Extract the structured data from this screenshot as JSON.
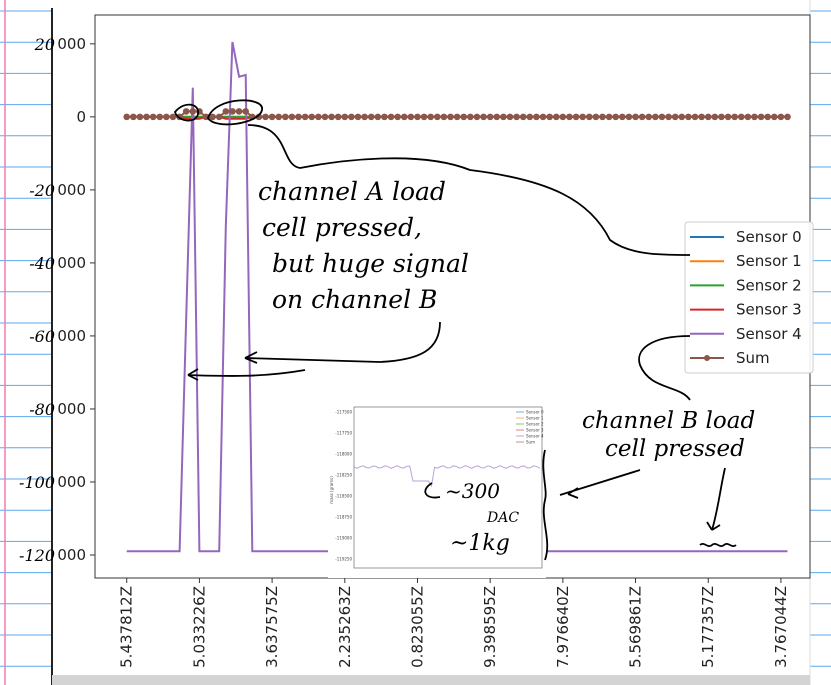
{
  "chart_data": {
    "type": "line",
    "title": "",
    "xlabel": "",
    "ylabel": "",
    "x": [
      0,
      1,
      2,
      3,
      4,
      5,
      6,
      7,
      8,
      9,
      10,
      11,
      12,
      13,
      14,
      15,
      16,
      17,
      18,
      19,
      20,
      21,
      22,
      23,
      24,
      25,
      26,
      27,
      28,
      29,
      30,
      31,
      32,
      33,
      34,
      35,
      36,
      37,
      38,
      39,
      40,
      41,
      42,
      43,
      44,
      45,
      46,
      47,
      48,
      49,
      50,
      51,
      52,
      53,
      54,
      55,
      56,
      57,
      58,
      59,
      60,
      61,
      62,
      63,
      64,
      65,
      66,
      67,
      68,
      69,
      70,
      71,
      72,
      73,
      74,
      75,
      76,
      77,
      78,
      79,
      80,
      81,
      82,
      83,
      84,
      85,
      86,
      87,
      88,
      89,
      90,
      91,
      92,
      93,
      94,
      95,
      96,
      97,
      98,
      99,
      100
    ],
    "xticks": [
      0,
      11,
      22,
      33,
      44,
      55,
      66,
      77,
      88,
      99
    ],
    "xtick_labels": [
      "5.437812Z",
      "5.033226Z",
      "3.637575Z",
      "2.235263Z",
      "0.823055Z",
      "9.398595Z",
      "7.976640Z",
      "5.569861Z",
      "5.177357Z",
      "3.767044Z"
    ],
    "xlim": [
      -4.8,
      103.4
    ],
    "ylim": [
      -126300,
      27900
    ],
    "yticks": [
      20000,
      0,
      -20000,
      -40000,
      -60000,
      -80000,
      -100000,
      -120000
    ],
    "ytick_labels": [
      "000",
      "0",
      "000",
      "000",
      "000",
      "000",
      "000",
      "000"
    ],
    "grid": false,
    "legend_placement": "center-right",
    "series": [
      {
        "name": "Sensor 0",
        "color": "#1f77b4",
        "baseline": 0,
        "overrides": {}
      },
      {
        "name": "Sensor 1",
        "color": "#ff7f0e",
        "baseline": 0,
        "overrides": {}
      },
      {
        "name": "Sensor 2",
        "color": "#2ca02c",
        "baseline": 0,
        "overrides": {}
      },
      {
        "name": "Sensor 3",
        "color": "#d62728",
        "baseline": 0,
        "overrides": {
          "9": -500,
          "10": -500,
          "11": -500,
          "15": -500,
          "16": -500,
          "17": -500,
          "18": -500
        }
      },
      {
        "name": "Sensor 4",
        "color": "#9467bd",
        "baseline": -119000,
        "overrides": {
          "9": -55000,
          "10": 8000,
          "11": -119000,
          "15": -30000,
          "16": 20500,
          "17": 11000,
          "18": 11500
        }
      },
      {
        "name": "Sum",
        "color": "#8c564b",
        "marker": "circle",
        "baseline": 0,
        "overrides": {
          "9": 1500,
          "10": 1500,
          "11": 1500,
          "15": 1500,
          "16": 1500,
          "17": 1500,
          "18": 1500
        }
      }
    ],
    "inset": {
      "yticks": [
        "-117500",
        "-117750",
        "-118000",
        "-118250",
        "-118500",
        "-118750",
        "-119000",
        "-119250"
      ],
      "legend": [
        "Sensor 0",
        "Sensor 1",
        "Sensor 2",
        "Sensor 3",
        "Sensor 4",
        "Sum"
      ],
      "ylabel": "mass (grams)"
    }
  },
  "annotations": {
    "ytick_handwritten": [
      "20",
      "-20",
      "-40",
      "-60",
      "-80",
      "-100",
      "-120"
    ],
    "note_a": [
      "channel A load",
      "cell pressed,",
      "but huge signal",
      "on channel B"
    ],
    "note_b": [
      "channel B load",
      "cell pressed"
    ],
    "inset_note": [
      "~300",
      "DAC",
      "~1kg"
    ]
  },
  "colors": {
    "paper_line": "#5aa8f0",
    "margin_line": "#f07cb4"
  }
}
